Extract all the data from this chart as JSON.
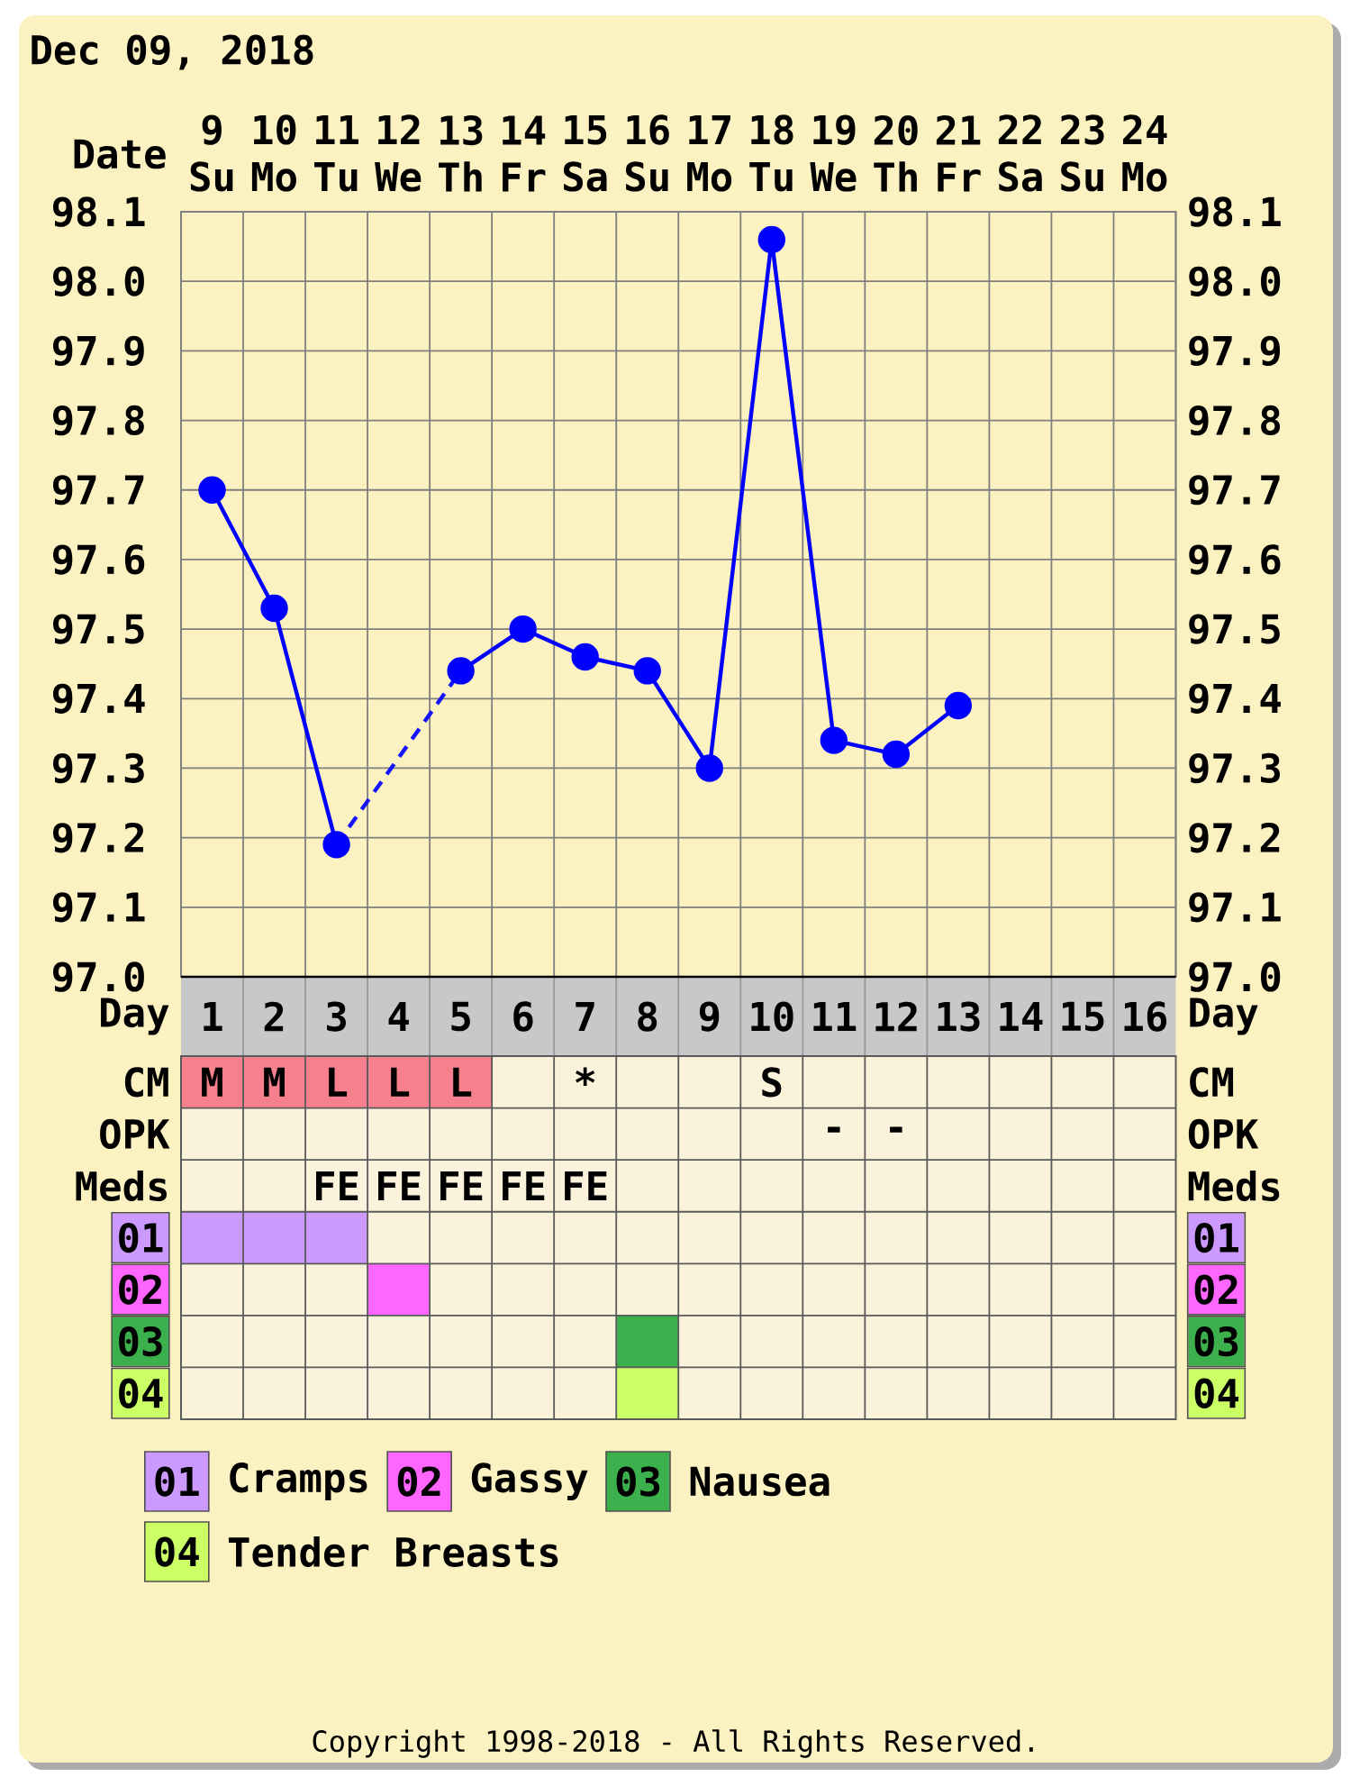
{
  "chart_data": [
    {
      "type": "line",
      "title": "Dec 09, 2018",
      "xlabel": "Date",
      "categories": [
        "9 Su",
        "10 Mo",
        "11 Tu",
        "12 We",
        "13 Th",
        "14 Fr",
        "15 Sa",
        "16 Su",
        "17 Mo",
        "18 Tu",
        "19 We",
        "20 Th",
        "21 Fr",
        "22 Sa",
        "23 Su",
        "24 Mo"
      ],
      "series": [
        {
          "color": "#0000ff",
          "values": [
            97.7,
            97.53,
            97.19,
            null,
            97.44,
            97.5,
            97.46,
            97.44,
            97.3,
            98.06,
            97.34,
            97.32,
            97.39,
            null,
            null,
            null
          ]
        },
        {
          "color": "#1414ff",
          "line_style": "dashed",
          "marker": "none",
          "x": [
            "11 Tu",
            "13 Th"
          ],
          "values": [
            97.19,
            97.44
          ]
        }
      ],
      "ylim": [
        97.0,
        98.1
      ],
      "yticks": [
        {
          "value": 97.0,
          "label": "97.0"
        },
        97.1,
        97.2,
        97.3,
        97.4,
        97.5,
        97.6,
        97.7,
        97.8,
        97.9,
        {
          "value": 98.0,
          "label": "98.0"
        },
        98.1
      ],
      "y2lim": [
        97.0,
        98.1
      ],
      "y2ticks": [
        {
          "value": 97.0,
          "label": "97.0"
        },
        97.1,
        97.2,
        97.3,
        97.4,
        97.5,
        97.6,
        97.7,
        97.8,
        97.9,
        {
          "value": 98.0,
          "label": "98.0"
        },
        98.1
      ],
      "grid": true,
      "marker": "circle"
    },
    {
      "type": "bar",
      "orientation": "horizontal",
      "xlabel": "Day",
      "categories": [
        "CM",
        "OPK",
        "Meds",
        "01",
        "02",
        "03",
        "04"
      ],
      "y2_categories": [
        "CM",
        "OPK",
        "Meds",
        "01",
        "02",
        "03",
        "04"
      ],
      "xlim": [
        0.5,
        16.5
      ],
      "xticks": [
        1,
        2,
        3,
        4,
        5,
        6,
        7,
        8,
        9,
        10,
        11,
        12,
        13,
        14,
        15,
        16
      ],
      "series": [
        {
          "color": "#f7808f",
          "values": [
            5,
            null,
            null,
            null,
            null,
            null,
            null
          ],
          "base": [
            0.5,
            null,
            null,
            null,
            null,
            null,
            null
          ]
        },
        {
          "name": "Cramps",
          "color": "#cc99ff",
          "values": [
            null,
            null,
            null,
            3,
            null,
            null,
            null
          ],
          "base": [
            null,
            null,
            null,
            0.5,
            null,
            null,
            null
          ]
        },
        {
          "name": "Gassy",
          "color": "#ff66ff",
          "values": [
            null,
            null,
            null,
            null,
            1,
            null,
            null
          ],
          "base": [
            null,
            null,
            null,
            null,
            3.5,
            null,
            null
          ]
        },
        {
          "name": "Nausea",
          "color": "#3cb04c",
          "values": [
            null,
            null,
            null,
            null,
            null,
            1,
            null
          ],
          "base": [
            null,
            null,
            null,
            null,
            null,
            7.5,
            null
          ]
        },
        {
          "name": "Tender Breasts",
          "color": "#ccff66",
          "values": [
            null,
            null,
            null,
            null,
            null,
            null,
            1
          ],
          "base": [
            null,
            null,
            null,
            null,
            null,
            null,
            7.5
          ]
        }
      ],
      "annotations": [
        "Copyright 1998-2018 - All Rights Reserved."
      ],
      "legend": "bottom",
      "grid": true
    },
    {
      "type": "other",
      "cell_labels": [
        [
          "M",
          "M",
          "L",
          "L",
          "L",
          null,
          "*",
          null,
          null,
          "S",
          null,
          null,
          null,
          null,
          null,
          null
        ],
        [
          null,
          null,
          null,
          null,
          null,
          null,
          null,
          null,
          null,
          null,
          "-",
          "-",
          null,
          null,
          null,
          null
        ],
        [
          null,
          null,
          "FE",
          "FE",
          "FE",
          "FE",
          "FE",
          null,
          null,
          null,
          null,
          null,
          null,
          null,
          null,
          null
        ]
      ]
    }
  ]
}
